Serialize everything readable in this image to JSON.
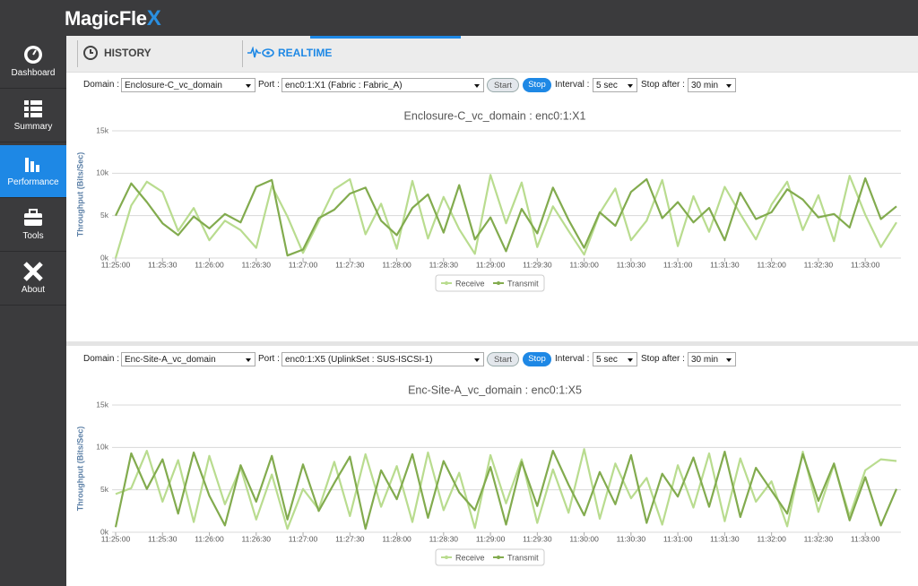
{
  "brand": {
    "text": "MagicFle",
    "mark": "X"
  },
  "sidebar": [
    "Dashboard",
    "Summary",
    "Performance",
    "Tools",
    "About"
  ],
  "tabs": [
    "HISTORY",
    "REALTIME"
  ],
  "panels": [
    {
      "domain_label": "Domain :",
      "domain": "Enclosure-C_vc_domain",
      "port_label": "Port :",
      "port": "enc0:1:X1 (Fabric : Fabric_A)",
      "start": "Start",
      "stop": "Stop",
      "interval_label": "Interval :",
      "interval": "5 sec",
      "stop_after_label": "Stop after :",
      "stop_after": "30 min"
    },
    {
      "domain_label": "Domain :",
      "domain": "Enc-Site-A_vc_domain",
      "port_label": "Port :",
      "port": "enc0:1:X5 (UplinkSet : SUS-ISCSI-1)",
      "start": "Start",
      "stop": "Stop",
      "interval_label": "Interval :",
      "interval": "5 sec",
      "stop_after_label": "Stop after :",
      "stop_after": "30 min"
    }
  ],
  "chart_data": [
    {
      "type": "line",
      "title": "Enclosure-C_vc_domain : enc0:1:X1",
      "y_label": "Throughput (Bits/Sec)",
      "categories": [
        "11:25:00",
        null,
        null,
        "11:25:30",
        null,
        null,
        "11:26:00",
        null,
        null,
        "11:26:30",
        null,
        null,
        "11:27:00",
        null,
        null,
        "11:27:30",
        null,
        null,
        "11:28:00",
        null,
        null,
        "11:28:30",
        null,
        null,
        "11:29:00",
        null,
        null,
        "11:29:30",
        null,
        null,
        "11:30:00",
        null,
        null,
        "11:30:30",
        null,
        null,
        "11:31:00",
        null,
        null,
        "11:31:30",
        null,
        null,
        "11:32:00",
        null,
        null,
        "11:32:30",
        null,
        null,
        "11:33:00",
        null,
        null
      ],
      "series": [
        {
          "name": "Receive",
          "color": "#b9dc8f",
          "values": [
            0,
            6200,
            9000,
            7800,
            3200,
            5900,
            2100,
            4400,
            3300,
            1200,
            8500,
            4900,
            600,
            4300,
            8100,
            9300,
            2800,
            6400,
            1100,
            9100,
            2300,
            7200,
            3400,
            500,
            9800,
            4100,
            8900,
            1300,
            6100,
            3200,
            400,
            5300,
            8200,
            2100,
            4400,
            9200,
            1400,
            7300,
            3100,
            8400,
            5200,
            2200,
            6300,
            9000,
            3300,
            7400,
            2000,
            9700,
            5100,
            1300,
            4200
          ]
        },
        {
          "name": "Transmit",
          "color": "#82ab4e",
          "values": [
            5000,
            8800,
            6600,
            4100,
            2700,
            4900,
            3500,
            5200,
            4200,
            8400,
            9200,
            300,
            1000,
            4700,
            5700,
            7600,
            8300,
            4400,
            2700,
            5900,
            7500,
            3000,
            8600,
            2200,
            4800,
            800,
            5800,
            2900,
            8300,
            4500,
            1200,
            5400,
            3800,
            7800,
            9300,
            4700,
            6600,
            4200,
            5900,
            2100,
            7700,
            4600,
            5400,
            8100,
            6900,
            4800,
            5200,
            3600,
            9400,
            4600,
            6100
          ]
        }
      ],
      "ylim": [
        0,
        15000
      ],
      "yticks": [
        {
          "value": 0,
          "label": "0k"
        },
        {
          "value": 5000,
          "label": "5k"
        },
        {
          "value": 10000,
          "label": "10k"
        },
        {
          "value": 15000,
          "label": "15k"
        }
      ],
      "grid": true,
      "legend": "bottom"
    },
    {
      "type": "line",
      "title": "Enc-Site-A_vc_domain : enc0:1:X5",
      "y_label": "Throughput (Bits/Sec)",
      "categories": [
        "11:25:00",
        null,
        null,
        "11:25:30",
        null,
        null,
        "11:26:00",
        null,
        null,
        "11:26:30",
        null,
        null,
        "11:27:00",
        null,
        null,
        "11:27:30",
        null,
        null,
        "11:28:00",
        null,
        null,
        "11:28:30",
        null,
        null,
        "11:29:00",
        null,
        null,
        "11:29:30",
        null,
        null,
        "11:30:00",
        null,
        null,
        "11:30:30",
        null,
        null,
        "11:31:00",
        null,
        null,
        "11:31:30",
        null,
        null,
        "11:32:00",
        null,
        null,
        "11:32:30",
        null,
        null,
        "11:33:00",
        null,
        null
      ],
      "series": [
        {
          "name": "Receive",
          "color": "#b9dc8f",
          "values": [
            4500,
            5200,
            9600,
            3600,
            8500,
            1200,
            9000,
            3300,
            7600,
            1500,
            6800,
            400,
            5100,
            2700,
            8300,
            1900,
            9200,
            3000,
            7800,
            1200,
            9400,
            2600,
            7000,
            500,
            9100,
            3400,
            8600,
            1100,
            7400,
            2300,
            9800,
            1600,
            8100,
            4000,
            6400,
            900,
            7900,
            2900,
            9300,
            1300,
            8700,
            3600,
            6000,
            700,
            9500,
            2400,
            8000,
            1900,
            7300,
            8600,
            8400
          ]
        },
        {
          "name": "Transmit",
          "color": "#82ab4e",
          "values": [
            600,
            9300,
            5100,
            8600,
            2200,
            9400,
            4300,
            800,
            7900,
            3600,
            9000,
            1500,
            8000,
            2500,
            5800,
            8900,
            400,
            7300,
            3900,
            9200,
            1700,
            8400,
            4700,
            2600,
            7700,
            900,
            8300,
            3100,
            9600,
            5600,
            2000,
            7100,
            3300,
            9100,
            1100,
            6900,
            4200,
            8800,
            3000,
            9500,
            1800,
            7600,
            4900,
            2200,
            9200,
            3700,
            8100,
            1400,
            6500,
            800,
            5100
          ]
        }
      ],
      "ylim": [
        0,
        15000
      ],
      "yticks": [
        {
          "value": 0,
          "label": "0k"
        },
        {
          "value": 5000,
          "label": "5k"
        },
        {
          "value": 10000,
          "label": "10k"
        },
        {
          "value": 15000,
          "label": "15k"
        }
      ],
      "grid": true,
      "legend": "bottom"
    }
  ]
}
